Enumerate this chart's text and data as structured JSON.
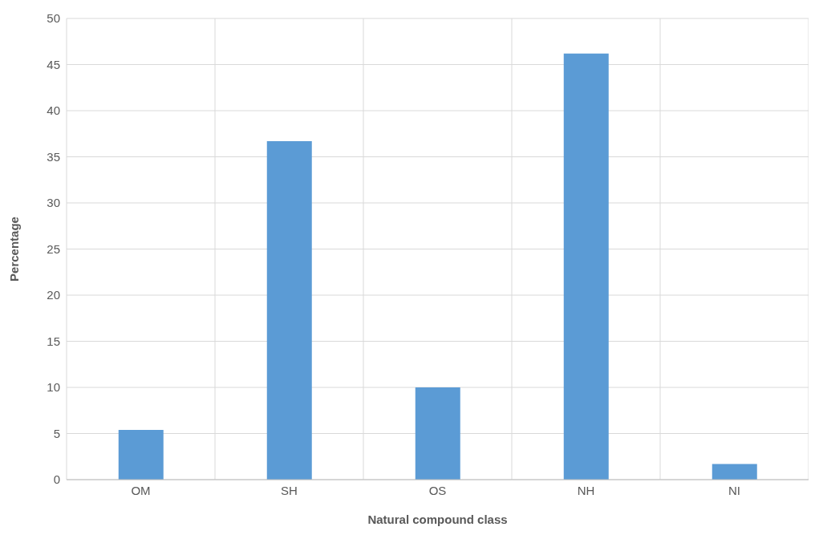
{
  "chart_data": {
    "type": "bar",
    "xlabel": "Natural compound class",
    "ylabel": "Percentage",
    "categories": [
      "OM",
      "SH",
      "OS",
      "NH",
      "NI"
    ],
    "values": [
      5.4,
      36.7,
      10.0,
      46.2,
      1.7
    ],
    "color": "#5b9bd5",
    "ylim": [
      0,
      50
    ],
    "yticks": [
      0,
      5,
      10,
      15,
      20,
      25,
      30,
      35,
      40,
      45,
      50
    ],
    "grid": true
  }
}
